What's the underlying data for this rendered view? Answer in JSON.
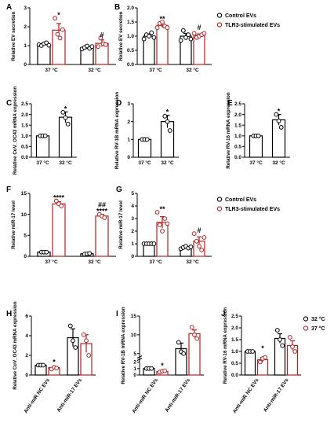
{
  "colors": {
    "control": "#000000",
    "stimulated": "#b22222"
  },
  "chart_data": [
    {
      "panel": "A",
      "type": "bar",
      "ylabel": "Relative EV secretion",
      "ylim": [
        0,
        3
      ],
      "yticks": [
        "0",
        "1",
        "2",
        "3"
      ],
      "categories": [
        "37 °C",
        "32 °C"
      ],
      "series": [
        {
          "name": "Control EVs",
          "values": [
            1.07,
            0.9
          ],
          "errors": [
            0.07,
            0.08
          ],
          "points": [
            [
              1.05,
              1.0,
              1.1,
              1.15,
              1.02
            ],
            [
              0.82,
              0.9,
              0.98,
              0.85,
              0.95
            ]
          ]
        },
        {
          "name": "TLR3-stimulated EVs",
          "values": [
            1.82,
            1.12
          ],
          "errors": [
            0.35,
            0.18
          ],
          "points": [
            [
              2.45,
              1.6,
              1.4,
              1.85
            ],
            [
              0.95,
              1.4,
              1.1,
              1.05
            ]
          ]
        }
      ],
      "annotations": [
        {
          "group": 0,
          "text": "*"
        },
        {
          "group": 1,
          "text": "#"
        }
      ]
    },
    {
      "panel": "B",
      "type": "bar",
      "ylabel": "Relative EV secretion",
      "ylim": [
        0,
        2.0
      ],
      "yticks": [
        "0.0",
        "0.5",
        "1.0",
        "1.5",
        "2.0"
      ],
      "categories": [
        "37 °C",
        "32 °C"
      ],
      "series": [
        {
          "name": "Control EVs",
          "values": [
            1.0,
            1.0
          ],
          "errors": [
            0.08,
            0.1
          ],
          "points": [
            [
              0.9,
              1.05,
              1.0,
              1.12,
              0.95
            ],
            [
              0.85,
              1.2,
              0.95,
              1.05,
              0.9
            ]
          ]
        },
        {
          "name": "TLR3-stimulated EVs",
          "values": [
            1.38,
            1.03
          ],
          "errors": [
            0.08,
            0.05
          ],
          "points": [
            [
              1.3,
              1.45,
              1.5,
              1.35,
              1.3
            ],
            [
              1.1,
              0.95,
              1.0,
              1.05,
              1.1
            ]
          ]
        }
      ],
      "annotations": [
        {
          "group": 0,
          "text": "**"
        },
        {
          "group": 1,
          "text": "#"
        }
      ],
      "legend": {
        "position": "right",
        "items": [
          "Control EVs",
          "TLR3-stimulated EVs"
        ]
      }
    },
    {
      "panel": "C",
      "type": "bar",
      "ylabel": "Relative CoV_OC43 mRNA expression",
      "ylim": [
        0,
        2.5
      ],
      "yticks": [
        "0.0",
        "0.5",
        "1.0",
        "1.5",
        "2.0",
        "2.5"
      ],
      "categories": [
        "37 °C",
        "32 °C"
      ],
      "values": [
        1.0,
        1.87
      ],
      "errors": [
        0.0,
        0.25
      ],
      "points": [
        [
          1.0,
          1.0,
          1.0
        ],
        [
          2.1,
          1.85,
          1.55
        ]
      ],
      "annotations": [
        {
          "group": 1,
          "text": "*"
        }
      ]
    },
    {
      "panel": "D",
      "type": "bar",
      "ylabel": "Relative RV-1B mRNA expression",
      "ylim": [
        0,
        3
      ],
      "yticks": [
        "0",
        "1",
        "2",
        "3"
      ],
      "categories": [
        "37 °C",
        "32 °C"
      ],
      "values": [
        1.0,
        2.0
      ],
      "errors": [
        0.0,
        0.35
      ],
      "points": [
        [
          1.0,
          1.0,
          1.0
        ],
        [
          2.3,
          2.0,
          1.5
        ]
      ],
      "annotations": [
        {
          "group": 1,
          "text": "*"
        }
      ]
    },
    {
      "panel": "E",
      "type": "bar",
      "ylabel": "Relative RV-16 mRNA expression",
      "ylim": [
        0,
        2.5
      ],
      "yticks": [
        "0.0",
        "0.5",
        "1.0",
        "1.5",
        "2.0",
        "2.5"
      ],
      "categories": [
        "37 °C",
        "32 °C"
      ],
      "values": [
        1.0,
        1.75
      ],
      "errors": [
        0.0,
        0.25
      ],
      "points": [
        [
          1.0,
          1.0,
          1.0
        ],
        [
          2.0,
          1.7,
          1.4
        ]
      ],
      "annotations": [
        {
          "group": 1,
          "text": "*"
        }
      ]
    },
    {
      "panel": "F",
      "type": "bar",
      "ylabel": "Relative miR-17 level",
      "ylim": [
        0,
        15
      ],
      "yticks": [
        "0",
        "5",
        "10",
        "15"
      ],
      "categories": [
        "37 °C",
        "32 °C"
      ],
      "series": [
        {
          "name": "Control EVs",
          "values": [
            1.0,
            0.6
          ],
          "errors": [
            0.05,
            0.1
          ],
          "points": [
            [
              1.0,
              1.0,
              1.0
            ],
            [
              0.5,
              0.6,
              0.7
            ]
          ]
        },
        {
          "name": "TLR3-stimulated EVs",
          "values": [
            12.5,
            9.6
          ],
          "errors": [
            0.5,
            0.4
          ],
          "points": [
            [
              13.2,
              12.5,
              12.0
            ],
            [
              10.0,
              9.6,
              9.2
            ]
          ]
        }
      ],
      "annotations": [
        {
          "group": 0,
          "text": "****"
        },
        {
          "group": 1,
          "text": "##"
        },
        {
          "group": 1,
          "text": "****"
        }
      ]
    },
    {
      "panel": "G",
      "type": "bar",
      "ylabel": "Relative miR-17 level",
      "ylim": [
        0,
        5
      ],
      "yticks": [
        "0",
        "1",
        "2",
        "3",
        "4",
        "5"
      ],
      "categories": [
        "37 °C",
        "32 °C"
      ],
      "series": [
        {
          "name": "Control EVs",
          "values": [
            1.0,
            0.7
          ],
          "errors": [
            0.05,
            0.08
          ],
          "points": [
            [
              1.0,
              1.0,
              1.0,
              1.0,
              1.0
            ],
            [
              0.6,
              0.7,
              0.8,
              0.65,
              0.75
            ]
          ]
        },
        {
          "name": "TLR3-stimulated EVs",
          "values": [
            2.7,
            1.2
          ],
          "errors": [
            0.45,
            0.35
          ],
          "points": [
            [
              3.5,
              2.5,
              2.0,
              3.0,
              2.6
            ],
            [
              1.8,
              1.2,
              0.8,
              0.5,
              1.5
            ]
          ]
        }
      ],
      "annotations": [
        {
          "group": 0,
          "text": "**"
        },
        {
          "group": 1,
          "text": "#"
        }
      ],
      "legend": {
        "position": "right",
        "items": [
          "Control EVs",
          "TLR3-stimulated EVs"
        ]
      }
    },
    {
      "panel": "H",
      "type": "bar",
      "ylabel": "Relative CoV_OC43 mRNA expression",
      "ylim": [
        0,
        6
      ],
      "yticks": [
        "0",
        "2",
        "4",
        "6"
      ],
      "categories": [
        "Anti-miR NC EVs",
        "Anti-miR-17 EVs"
      ],
      "series": [
        {
          "name": "32 °C",
          "values": [
            1.0,
            3.8
          ],
          "errors": [
            0.0,
            0.9
          ],
          "points": [
            [
              1.0,
              1.0,
              1.0
            ],
            [
              5.0,
              3.5,
              2.8
            ]
          ]
        },
        {
          "name": "37 °C",
          "values": [
            0.75,
            3.2
          ],
          "errors": [
            0.1,
            0.9
          ],
          "points": [
            [
              0.6,
              0.8,
              0.7
            ],
            [
              4.1,
              3.5,
              2.0
            ]
          ]
        }
      ],
      "annotations": [
        {
          "group": 0,
          "text": "*"
        }
      ]
    },
    {
      "panel": "I",
      "type": "bar",
      "ylabel": "Relative RV-1B mRNA expression",
      "ylim": [
        0,
        15
      ],
      "yticks": [
        "0",
        "1",
        "2",
        "5",
        "10",
        "15"
      ],
      "axis_break": [
        2,
        4
      ],
      "categories": [
        "Anti-miR NC EVs",
        "Anti-miR-17 EVs"
      ],
      "series": [
        {
          "name": "32 °C",
          "values": [
            1.0,
            6.3
          ],
          "errors": [
            0.0,
            1.5
          ],
          "points": [
            [
              1.0,
              1.0,
              1.0
            ],
            [
              8.0,
              5.5,
              5.0
            ]
          ]
        },
        {
          "name": "37 °C",
          "values": [
            0.55,
            10.3
          ],
          "errors": [
            0.1,
            1.0
          ],
          "points": [
            [
              0.45,
              0.6,
              0.65
            ],
            [
              12.0,
              10.0,
              9.0
            ]
          ]
        }
      ],
      "annotations": [
        {
          "group": 0,
          "text": "*"
        }
      ]
    },
    {
      "panel": "J",
      "type": "bar",
      "ylabel": "Relative RV-16 mRNA expression",
      "ylim": [
        0,
        2.5
      ],
      "yticks": [
        "0.0",
        "0.5",
        "1.0",
        "1.5",
        "2.0",
        "2.5"
      ],
      "categories": [
        "Anti-miR NC EVs",
        "Anti-miR-17 EVs"
      ],
      "series": [
        {
          "name": "32 °C",
          "values": [
            1.0,
            1.55
          ],
          "errors": [
            0.0,
            0.2
          ],
          "points": [
            [
              1.0,
              1.0,
              1.0
            ],
            [
              1.9,
              1.5,
              1.25
            ]
          ]
        },
        {
          "name": "37 °C",
          "values": [
            0.65,
            1.25
          ],
          "errors": [
            0.1,
            0.2
          ],
          "points": [
            [
              0.55,
              0.7,
              0.75
            ],
            [
              1.6,
              1.2,
              1.0
            ]
          ]
        }
      ],
      "annotations": [
        {
          "group": 0,
          "text": "*"
        }
      ],
      "legend": {
        "position": "right",
        "items": [
          "32 °C",
          "37 °C"
        ]
      }
    }
  ]
}
